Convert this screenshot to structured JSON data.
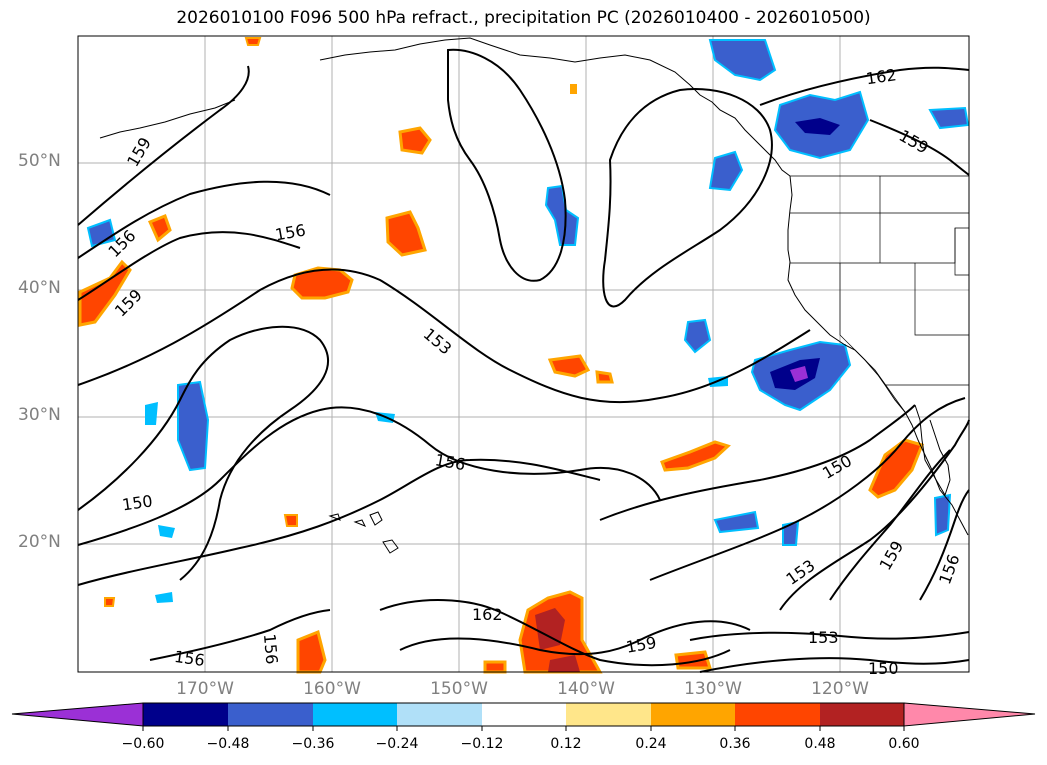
{
  "title": "2026010100 F096 500 hPa refract., precipitation PC (2026010400 - 2026010500)",
  "map": {
    "lat_labels": [
      "50°N",
      "40°N",
      "30°N",
      "20°N"
    ],
    "lon_labels": [
      "170°W",
      "160°W",
      "150°W",
      "140°W",
      "130°W",
      "120°W"
    ],
    "contour_labels": [
      "159",
      "156",
      "159",
      "156",
      "153",
      "156",
      "150",
      "156",
      "156",
      "162",
      "159",
      "162",
      "159",
      "150",
      "153",
      "159",
      "156",
      "153",
      "150"
    ]
  },
  "colorbar": {
    "ticks": [
      "−0.60",
      "−0.48",
      "−0.36",
      "−0.24",
      "−0.12",
      "0.12",
      "0.24",
      "0.36",
      "0.48",
      "0.60"
    ],
    "colors": [
      "#9b30d6",
      "#00008b",
      "#3a5fcd",
      "#00bfff",
      "#b0e0f8",
      "#ffffff",
      "#ffe68a",
      "#ffa500",
      "#ff4500",
      "#b22222",
      "#ff88aa"
    ]
  }
}
